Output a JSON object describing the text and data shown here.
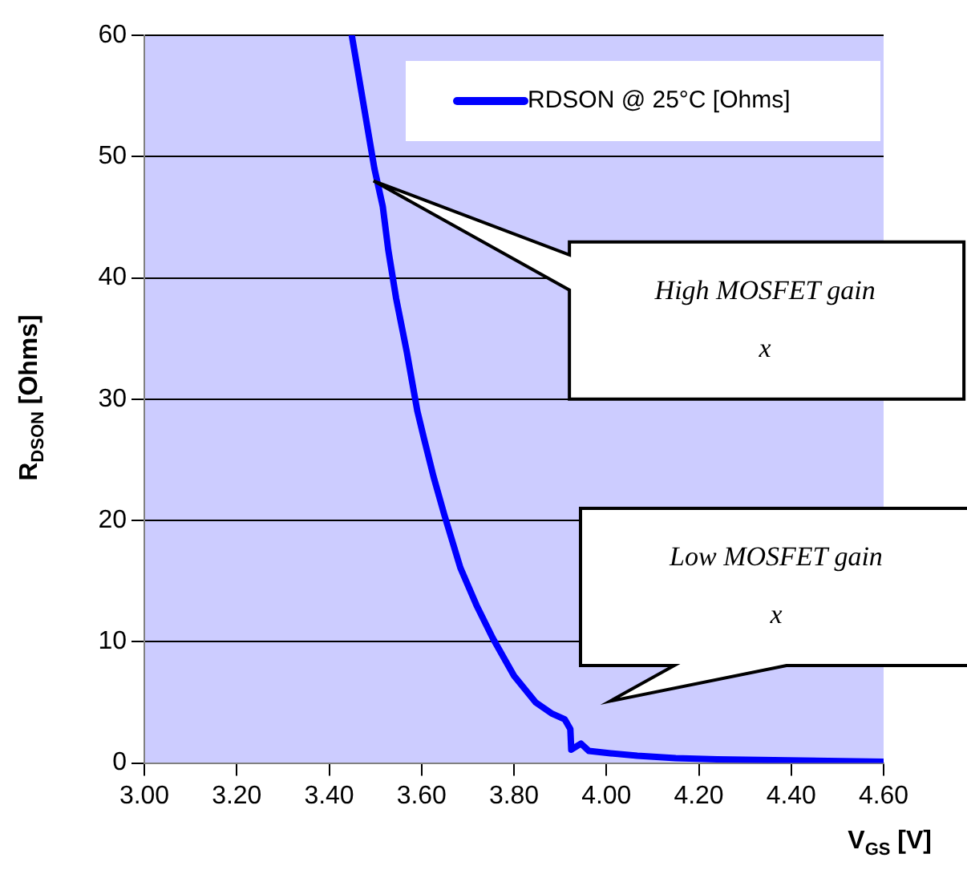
{
  "chart_data": {
    "type": "line",
    "xlabel": "V$_{GS}$ [V]",
    "ylabel": "R$_{DSON}$ [Ohms]",
    "series": [
      {
        "name": "RDSON @ 25°C [Ohms]",
        "color": "#0000ff",
        "x": [
          3.449,
          3.498,
          3.516,
          3.528,
          3.545,
          3.568,
          3.591,
          3.605,
          3.626,
          3.649,
          3.684,
          3.719,
          3.754,
          3.8,
          3.847,
          3.881,
          3.91,
          3.922,
          3.924,
          3.945,
          3.962,
          4.009,
          4.067,
          4.15,
          4.24,
          4.6
        ],
        "values": [
          60,
          49,
          45.9,
          42.3,
          38.3,
          33.9,
          29,
          26.8,
          23.6,
          20.5,
          16.1,
          13,
          10.3,
          7.2,
          5,
          4.1,
          3.6,
          2.8,
          1.1,
          1.6,
          1,
          0.8,
          0.6,
          0.4,
          0.3,
          0.1
        ]
      }
    ],
    "xlim": [
      3,
      4.6
    ],
    "xticks": [
      {
        "value": 3,
        "label": "3.00"
      },
      {
        "value": 3.2,
        "label": "3.20"
      },
      {
        "value": 3.4,
        "label": "3.40"
      },
      {
        "value": 3.6,
        "label": "3.60"
      },
      {
        "value": 3.8,
        "label": "3.80"
      },
      {
        "value": 4,
        "label": "4.00"
      },
      {
        "value": 4.2,
        "label": "4.20"
      },
      {
        "value": 4.4,
        "label": "4.40"
      },
      {
        "value": 4.6,
        "label": "4.60"
      }
    ],
    "ylim": [
      0,
      60
    ],
    "yticks": [
      0,
      10,
      20,
      30,
      40,
      50,
      60
    ],
    "grid": "y",
    "legend": "top right",
    "marker": "none",
    "line_style": "solid",
    "annotations": [
      "High MOSFET gain\nx",
      "Low MOSFET gain\nx"
    ]
  }
}
